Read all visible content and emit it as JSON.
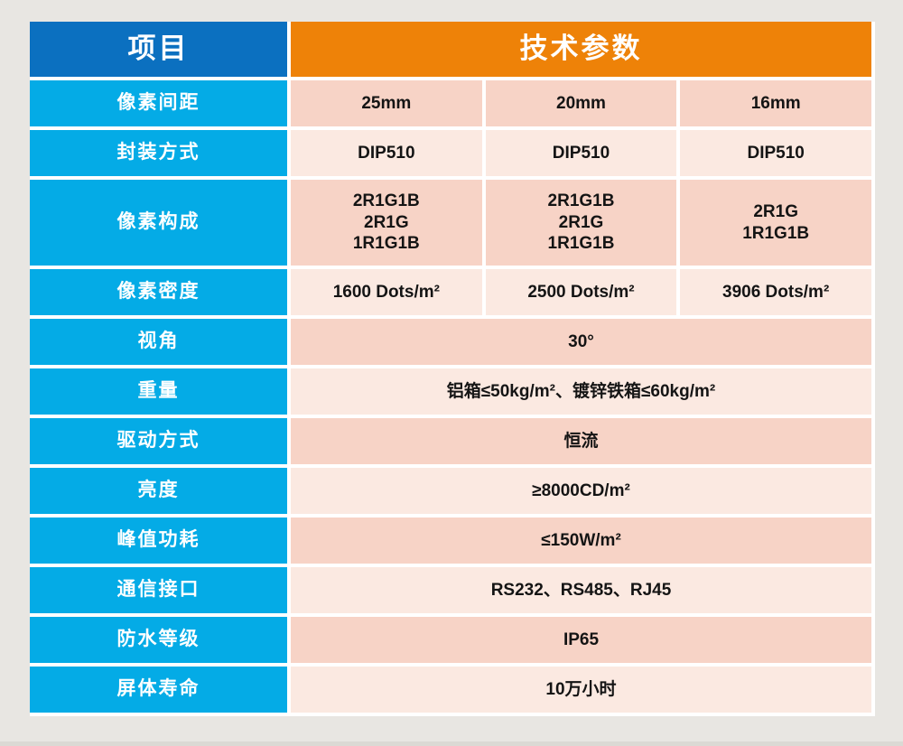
{
  "page": {
    "background_color": "#e8e6e2",
    "colors": {
      "header_blue": "#0b70c0",
      "header_orange": "#ee8208",
      "label_cyan": "#04abe6",
      "row_pink_dark": "#f7d3c6",
      "row_pink_light": "#fbe9e1",
      "gutter_white": "#ffffff",
      "text_dark": "#141414"
    }
  },
  "table": {
    "header": {
      "items_label": "项目",
      "params_label": "技术参数"
    },
    "rows": [
      {
        "label": "像素间距",
        "cells": [
          "25mm",
          "20mm",
          "16mm"
        ]
      },
      {
        "label": "封装方式",
        "cells": [
          "DIP510",
          "DIP510",
          "DIP510"
        ]
      },
      {
        "label": "像素构成",
        "cells": [
          [
            "2R1G1B",
            "2R1G",
            "1R1G1B"
          ],
          [
            "2R1G1B",
            "2R1G",
            "1R1G1B"
          ],
          [
            "2R1G",
            "1R1G1B"
          ]
        ]
      },
      {
        "label": "像素密度",
        "cells": [
          "1600 Dots/m²",
          "2500 Dots/m²",
          "3906 Dots/m²"
        ]
      },
      {
        "label": "视角",
        "value": "30°"
      },
      {
        "label": "重量",
        "value": "铝箱≤50kg/m²、镀锌铁箱≤60kg/m²"
      },
      {
        "label": "驱动方式",
        "value": "恒流"
      },
      {
        "label": "亮度",
        "value": "≥8000CD/m²"
      },
      {
        "label": "峰值功耗",
        "value": "≤150W/m²"
      },
      {
        "label": "通信接口",
        "value": "RS232、RS485、RJ45"
      },
      {
        "label": "防水等级",
        "value": "IP65"
      },
      {
        "label": "屏体寿命",
        "value": "10万小时"
      }
    ]
  }
}
